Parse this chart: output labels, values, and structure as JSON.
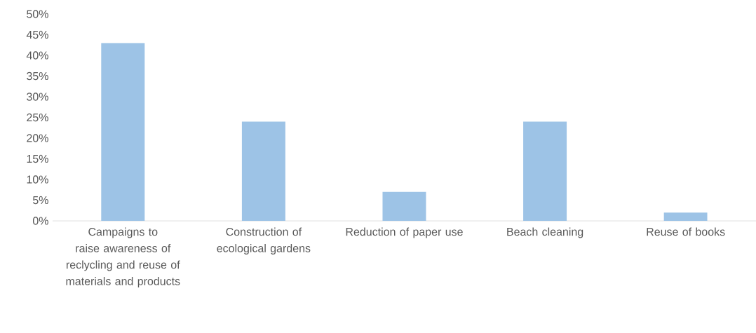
{
  "chart_data": {
    "type": "bar",
    "categories": [
      "Campaigns to raise awareness of reclycling and reuse of materials and products",
      "Construction of ecological gardens",
      "Reduction of paper use",
      "Beach cleaning",
      "Reuse of books"
    ],
    "values": [
      43,
      24,
      7,
      24,
      2
    ],
    "color": "#9dc3e6",
    "ylim": [
      0,
      50
    ],
    "yticks": [
      {
        "value": 0,
        "label": "0%"
      },
      {
        "value": 5,
        "label": "5%"
      },
      {
        "value": 10,
        "label": "10%"
      },
      {
        "value": 15,
        "label": "15%"
      },
      {
        "value": 20,
        "label": "20%"
      },
      {
        "value": 25,
        "label": "25%"
      },
      {
        "value": 30,
        "label": "30%"
      },
      {
        "value": 35,
        "label": "35%"
      },
      {
        "value": 40,
        "label": "40%"
      },
      {
        "value": 45,
        "label": "45%"
      },
      {
        "value": 50,
        "label": "50%"
      }
    ],
    "grid": false
  }
}
